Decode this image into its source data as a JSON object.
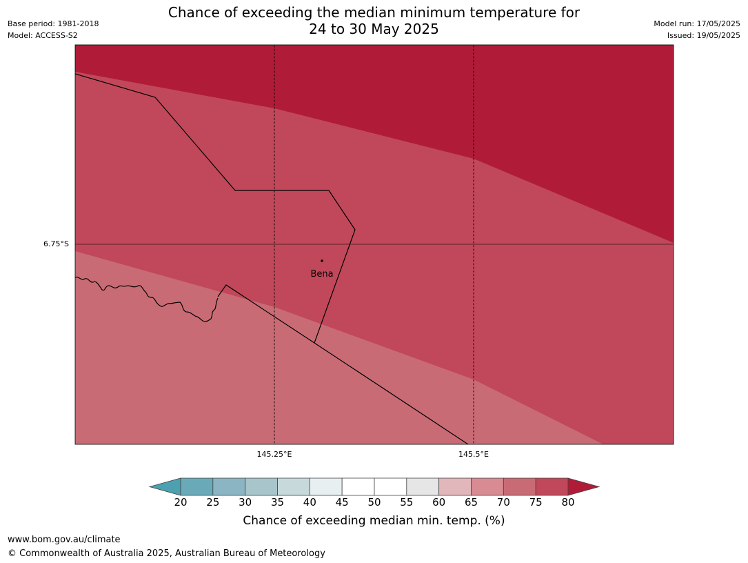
{
  "header": {
    "title_line1": "Chance of exceeding the median minimum temperature for",
    "title_line2": "24 to 30 May 2025",
    "base_period": "Base period: 1981-2018",
    "model": "Model: ACCESS-S2",
    "model_run": "Model run: 17/05/2025",
    "issued": "Issued: 19/05/2025"
  },
  "map": {
    "lat_label": "6.75°S",
    "lon_labels": [
      "145.25°E",
      "145.5°E"
    ],
    "place": {
      "name": "Bena"
    },
    "colors": {
      "band_80_plus": "#b01c38",
      "band_75_80": "#c0485a",
      "band_70_75": "#c96b75",
      "border": "#000000"
    }
  },
  "colorbar": {
    "ticks": [
      "20",
      "25",
      "30",
      "35",
      "40",
      "45",
      "50",
      "55",
      "60",
      "65",
      "70",
      "75",
      "80"
    ],
    "under_color": "#4ca0b0",
    "over_color": "#b01c38",
    "colors": [
      "#6aaab8",
      "#8bb5c2",
      "#a8c5cb",
      "#c8d9dc",
      "#e8eff1",
      "#ffffff",
      "#ffffff",
      "#e6e6e6",
      "#e2b7bc",
      "#d88b93",
      "#c96b75",
      "#c0485a"
    ],
    "label": "Chance of exceeding median min. temp. (%)"
  },
  "footer": {
    "url": "www.bom.gov.au/climate",
    "copyright": "© Commonwealth of Australia 2025, Australian Bureau of Meteorology"
  }
}
